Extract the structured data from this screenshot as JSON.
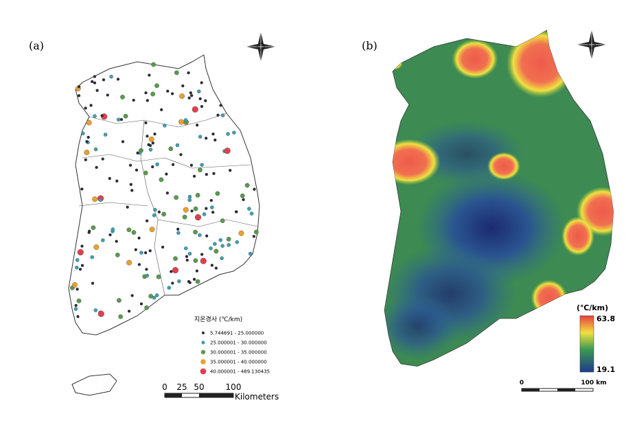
{
  "panels": {
    "a": {
      "label": "(a)",
      "legend": {
        "title": "지온경사 (℃/km)",
        "items": [
          {
            "label": "5.744691 - 25.000000",
            "color": "#2b2b3a"
          },
          {
            "label": "25.000001 - 30.000000",
            "color": "#3fa0b0"
          },
          {
            "label": "30.000001 - 35.000000",
            "color": "#5a9a50"
          },
          {
            "label": "35.000001 - 40.000000",
            "color": "#e8a030"
          },
          {
            "label": "40.000001 - 489.130435",
            "color": "#e04050"
          }
        ]
      },
      "scale_bar": {
        "ticks": [
          "0",
          "25",
          "50",
          "100"
        ],
        "unit": "Kilometers"
      }
    },
    "b": {
      "label": "(b)",
      "colorbar": {
        "unit": "(℃/km)",
        "max": 63.8,
        "min": 19.1
      },
      "scale_bar": {
        "start": "0",
        "end": "100 km"
      }
    }
  }
}
